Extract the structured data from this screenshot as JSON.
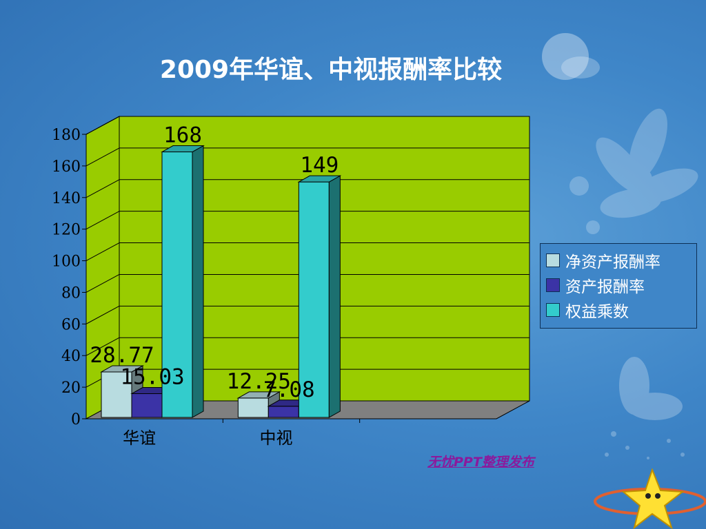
{
  "slide": {
    "title": "2009年华谊、中视报酬率比较",
    "footer_link": "无忧PPT整理发布",
    "footer_color": "#8b1a9c",
    "background_color": "#3f86c8",
    "decor_icons": [
      "flower-icon",
      "moon-icon",
      "fairy-icon",
      "star-mascot-icon"
    ]
  },
  "chart_data": {
    "type": "bar",
    "title": "2009年华谊、中视报酬率比较",
    "categories": [
      "华谊",
      "中视"
    ],
    "slot_count": 3,
    "series": [
      {
        "name": "净资产报酬率",
        "values": [
          28.77,
          12.25
        ],
        "labels": [
          "28.77",
          "12.25"
        ],
        "color": "#b8dce0"
      },
      {
        "name": "资产报酬率",
        "values": [
          15.03,
          7.08
        ],
        "labels": [
          "15.03",
          "7.08"
        ],
        "color": "#3b33a6"
      },
      {
        "name": "权益乘数",
        "values": [
          168,
          149
        ],
        "labels": [
          "168",
          "149"
        ],
        "color": "#33cccc"
      }
    ],
    "yticks": [
      "0",
      "20",
      "40",
      "60",
      "80",
      "100",
      "120",
      "140",
      "160",
      "180"
    ],
    "ylim": [
      0,
      180
    ],
    "grid": true,
    "style_3d": true,
    "wall_color": "#99cc00",
    "floor_color": "#808080",
    "legend_position": "right"
  }
}
